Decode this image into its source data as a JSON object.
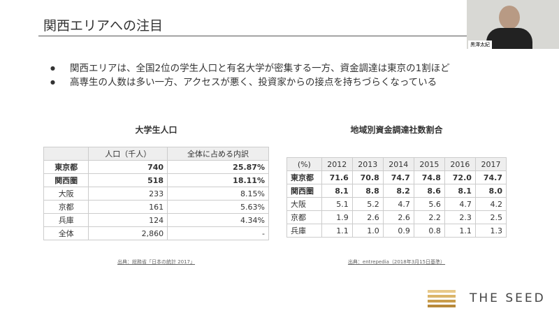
{
  "header": {
    "title": "関西エリアへの注目"
  },
  "presenter": {
    "name": "黒澤太紀"
  },
  "bullets": [
    "関西エリアは、全国2位の学生人口と有名大学が密集する一方、資金調達は東京の1割ほど",
    "高専生の人数は多い一方、アクセスが悪く、投資家からの接点を持ちづらくなっている"
  ],
  "table1": {
    "title": "大学生人口",
    "columns": [
      "人口（千人）",
      "全体に占める内訳"
    ],
    "rows": [
      [
        "東京都",
        "740",
        "25.87%"
      ],
      [
        "関西圏",
        "518",
        "18.11%"
      ],
      [
        "大阪",
        "233",
        "8.15%"
      ],
      [
        "京都",
        "161",
        "5.63%"
      ],
      [
        "兵庫",
        "124",
        "4.34%"
      ],
      [
        "全体",
        "2,860",
        "-"
      ]
    ],
    "source": "出典：総務省「日本の統計 2017」"
  },
  "table2": {
    "title": "地域別資金調達社数割合",
    "columns": [
      "(%)",
      "2012",
      "2013",
      "2014",
      "2015",
      "2016",
      "2017"
    ],
    "rows": [
      [
        "東京都",
        "71.6",
        "70.8",
        "74.7",
        "74.8",
        "72.0",
        "74.7"
      ],
      [
        "関西圏",
        "8.1",
        "8.8",
        "8.2",
        "8.6",
        "8.1",
        "8.0"
      ],
      [
        "大阪",
        "5.1",
        "5.2",
        "4.7",
        "5.6",
        "4.7",
        "4.2"
      ],
      [
        "京都",
        "1.9",
        "2.6",
        "2.6",
        "2.2",
        "2.3",
        "2.5"
      ],
      [
        "兵庫",
        "1.1",
        "1.0",
        "0.9",
        "0.8",
        "1.1",
        "1.3"
      ]
    ],
    "source": "出典：entrepedia（2018年3月15日基準）"
  },
  "logo": {
    "text": "THE SEED"
  }
}
